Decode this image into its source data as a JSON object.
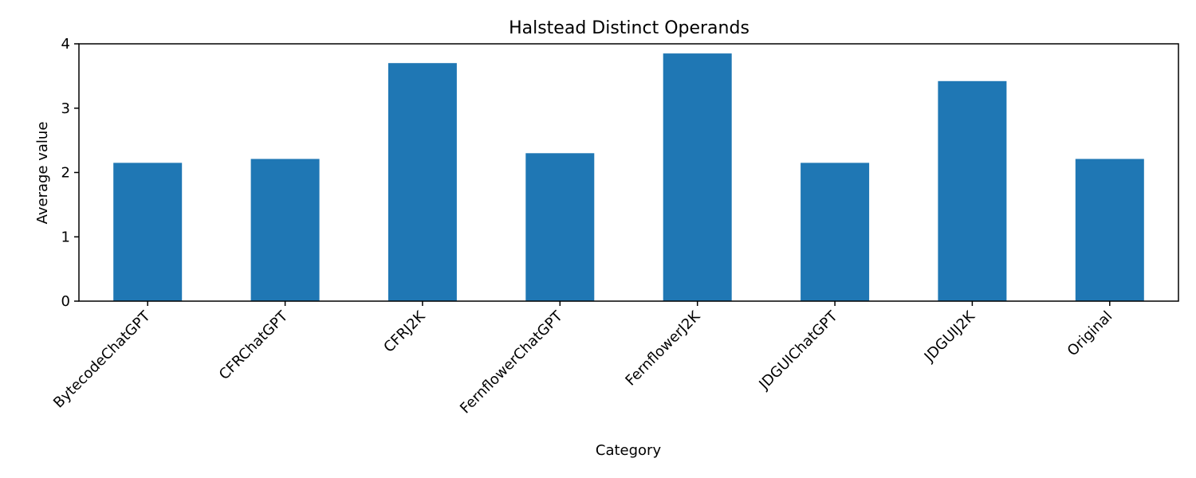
{
  "chart_data": {
    "type": "bar",
    "title": "Halstead Distinct Operands",
    "xlabel": "Category",
    "ylabel": "Average value",
    "categories": [
      "BytecodeChatGPT",
      "CFRChatGPT",
      "CFRJ2K",
      "FernflowerChatGPT",
      "FernflowerJ2K",
      "JDGUIChatGPT",
      "JDGUIJ2K",
      "Original"
    ],
    "values": [
      2.15,
      2.21,
      3.7,
      2.3,
      3.85,
      2.15,
      3.42,
      2.21
    ],
    "ylim": [
      0,
      4
    ],
    "yticks": [
      0,
      1,
      2,
      3,
      4
    ],
    "grid": false,
    "bar_color": "#1f77b4"
  }
}
